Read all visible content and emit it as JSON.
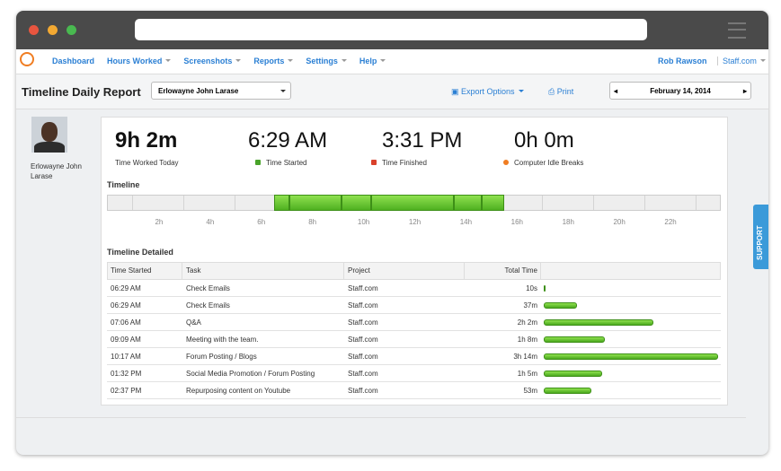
{
  "nav": {
    "items": [
      "Dashboard",
      "Hours Worked",
      "Screenshots",
      "Reports",
      "Settings",
      "Help"
    ],
    "user": "Rob Rawson",
    "org": "Staff.com"
  },
  "toolbar": {
    "title": "Timeline Daily Report",
    "employee": "Erlowayne John Larase",
    "export": "Export Options",
    "print": "Print",
    "date": "February 14, 2014"
  },
  "profile": {
    "name": "Erlowayne John Larase"
  },
  "stats": [
    {
      "value": "9h 2m",
      "label": "Time Worked Today"
    },
    {
      "value": "6:29 AM",
      "label": "Time Started"
    },
    {
      "value": "3:31 PM",
      "label": "Time Finished"
    },
    {
      "value": "0h 0m",
      "label": "Computer Idle Breaks"
    }
  ],
  "timeline": {
    "title": "Timeline",
    "ticks": [
      "2h",
      "4h",
      "6h",
      "8h",
      "10h",
      "12h",
      "14h",
      "16h",
      "18h",
      "20h",
      "22h"
    ]
  },
  "detail": {
    "title": "Timeline Detailed",
    "columns": [
      "Time Started",
      "Task",
      "Project",
      "Total Time"
    ],
    "rows": [
      [
        "06:29 AM",
        "Check Emails",
        "Staff.com",
        "10s"
      ],
      [
        "06:29 AM",
        "Check Emails",
        "Staff.com",
        "37m"
      ],
      [
        "07:06 AM",
        "Q&A",
        "Staff.com",
        "2h 2m"
      ],
      [
        "09:09 AM",
        "Meeting with the team.",
        "Staff.com",
        "1h 8m"
      ],
      [
        "10:17 AM",
        "Forum Posting / Blogs",
        "Staff.com",
        "3h 14m"
      ],
      [
        "01:32 PM",
        "Social Media Promotion / Forum Posting",
        "Staff.com",
        "1h 5m"
      ],
      [
        "02:37 PM",
        "Repurposing content on Youtube",
        "Staff.com",
        "53m"
      ]
    ]
  },
  "support": "SUPPORT"
}
